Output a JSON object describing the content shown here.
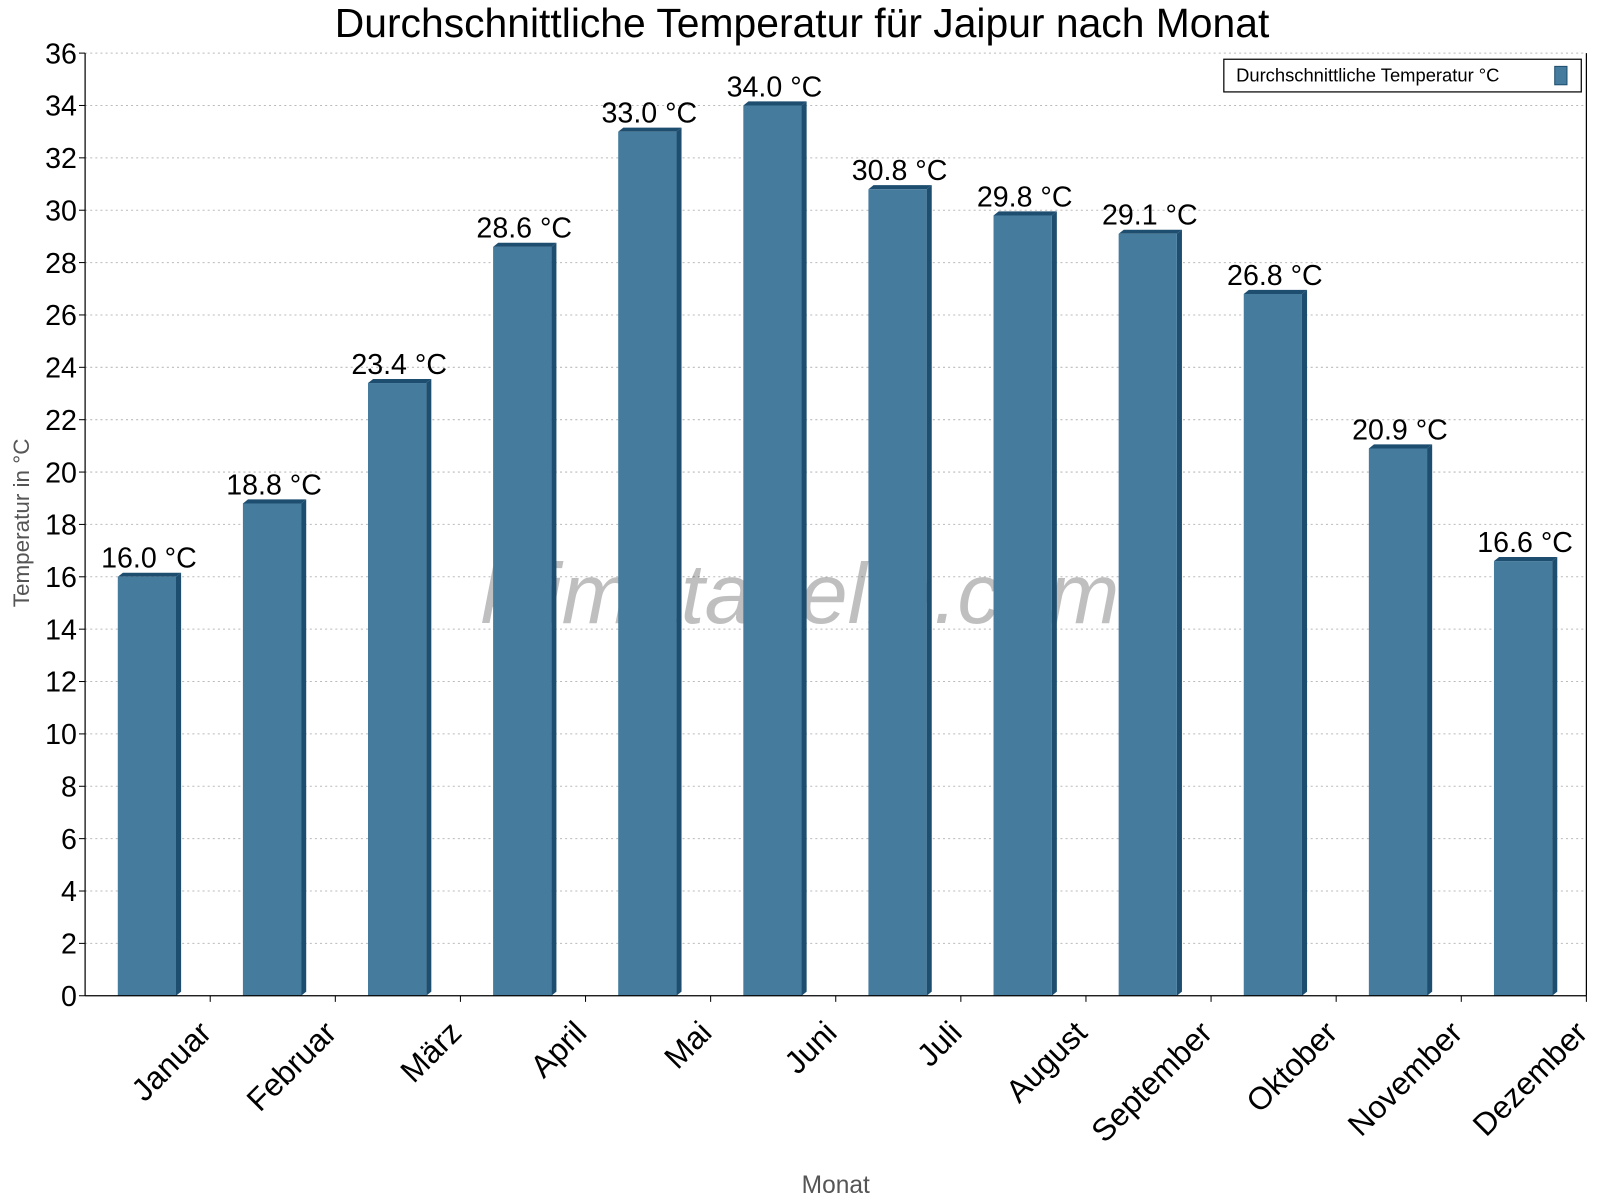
{
  "chart_data": {
    "type": "bar",
    "title": "Durchschnittliche Temperatur für Jaipur nach Monat",
    "xlabel": "Monat",
    "ylabel": "Temperatur in °C",
    "ylim": [
      0,
      36
    ],
    "ytick_step": 2,
    "grid": true,
    "legend_position": "top-right",
    "categories": [
      "Januar",
      "Februar",
      "März",
      "April",
      "Mai",
      "Juni",
      "Juli",
      "August",
      "September",
      "Oktober",
      "November",
      "Dezember"
    ],
    "series": [
      {
        "name": "Durchschnittliche Temperatur °C",
        "color": "#457b9d",
        "values": [
          16.0,
          18.8,
          23.4,
          28.6,
          33.0,
          34.0,
          30.8,
          29.8,
          29.1,
          26.8,
          20.9,
          16.6
        ]
      }
    ],
    "data_labels": [
      "16.0 °C",
      "18.8 °C",
      "23.4 °C",
      "28.6 °C",
      "33.0 °C",
      "34.0 °C",
      "30.8 °C",
      "29.8 °C",
      "29.1 °C",
      "26.8 °C",
      "20.9 °C",
      "16.6 °C"
    ],
    "watermark": "klimatabelle.com"
  }
}
